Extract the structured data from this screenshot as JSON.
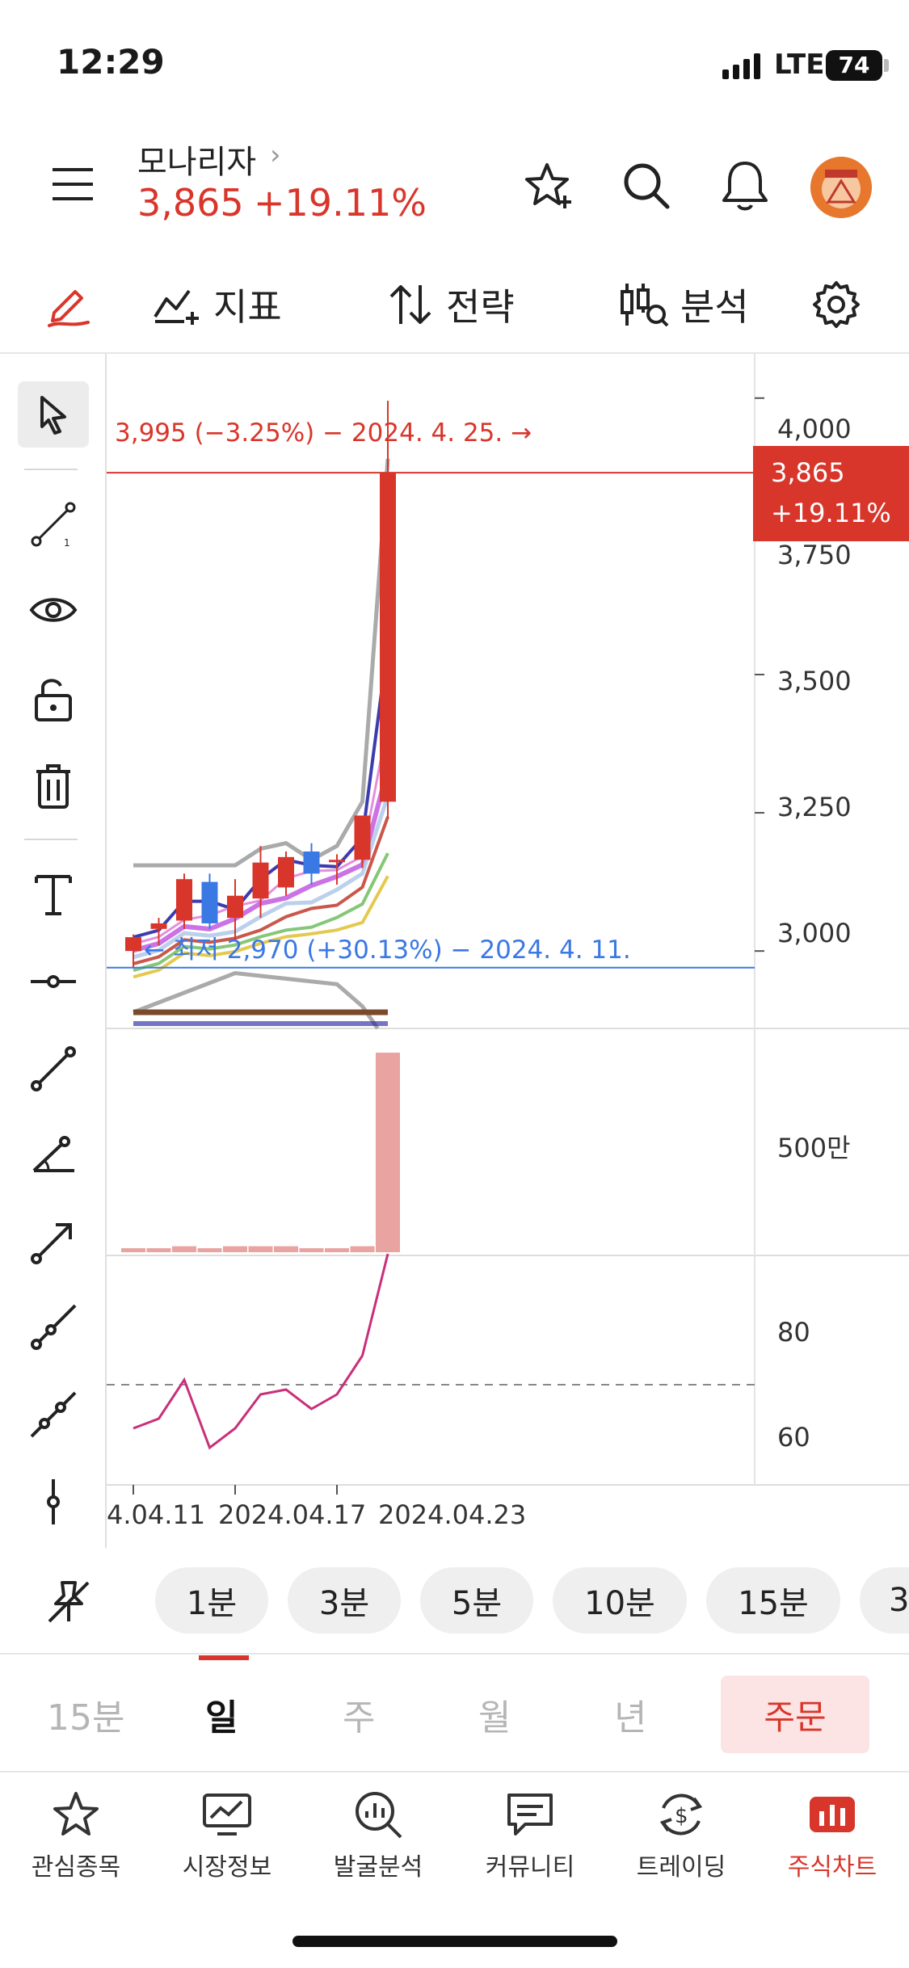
{
  "status_bar": {
    "time": "12:29",
    "network": "LTE",
    "battery": "74"
  },
  "header": {
    "stock_name": "모나리자",
    "chevron": "›",
    "price": "3,865",
    "change_pct": "+19.11%",
    "icons": [
      "menu-icon",
      "star-plus-icon",
      "search-icon",
      "bell-icon",
      "avatar"
    ]
  },
  "toolbar": {
    "indicator_label": "지표",
    "strategy_label": "전략",
    "analysis_label": "분석"
  },
  "chart": {
    "high_annotation": "3,995 (−3.25%) − 2024. 4. 25. →",
    "low_annotation": "← 최저 2,970 (+30.13%) − 2024. 4. 11.",
    "price_tag_price": "3,865",
    "price_tag_change": "+19.11%",
    "y_labels_price": [
      "4,000",
      "3,750",
      "3,500",
      "3,250",
      "3,000"
    ],
    "y_label_volume": "500만",
    "y_labels_rsi": [
      "80",
      "60"
    ],
    "x_labels": [
      "4.04.11",
      "2024.04.17",
      "2024.04.23"
    ],
    "colors": {
      "up": "#d9362b",
      "down": "#3a78e4",
      "volume": "#e9a3a0",
      "rsi": "#c8307a"
    }
  },
  "chart_data": {
    "type": "candlestick",
    "dates": [
      "2024.04.11",
      "2024.04.12",
      "2024.04.15",
      "2024.04.16",
      "2024.04.17",
      "2024.04.18",
      "2024.04.19",
      "2024.04.22",
      "2024.04.23",
      "2024.04.24",
      "2024.04.25"
    ],
    "candles": [
      {
        "o": 3000,
        "h": 3030,
        "l": 2970,
        "c": 3025
      },
      {
        "o": 3040,
        "h": 3060,
        "l": 3010,
        "c": 3050
      },
      {
        "o": 3055,
        "h": 3140,
        "l": 3040,
        "c": 3130
      },
      {
        "o": 3125,
        "h": 3140,
        "l": 3040,
        "c": 3050
      },
      {
        "o": 3060,
        "h": 3130,
        "l": 3020,
        "c": 3100
      },
      {
        "o": 3095,
        "h": 3190,
        "l": 3060,
        "c": 3160
      },
      {
        "o": 3115,
        "h": 3180,
        "l": 3100,
        "c": 3170
      },
      {
        "o": 3180,
        "h": 3195,
        "l": 3120,
        "c": 3140
      },
      {
        "o": 3165,
        "h": 3175,
        "l": 3120,
        "c": 3165
      },
      {
        "o": 3165,
        "h": 3245,
        "l": 3150,
        "c": 3245
      },
      {
        "o": 3270,
        "h": 3995,
        "l": 3240,
        "c": 3865
      }
    ],
    "volume_relative": [
      0.02,
      0.02,
      0.03,
      0.02,
      0.03,
      0.03,
      0.03,
      0.02,
      0.02,
      0.03,
      1.0
    ],
    "rsi": [
      61,
      63,
      71,
      57,
      61,
      68,
      69,
      65,
      68,
      76,
      97
    ],
    "rsi_reference": 70,
    "y_range_price": [
      2860,
      4080
    ],
    "y_range_rsi": [
      50,
      96
    ]
  },
  "timeframes": [
    "1분",
    "3분",
    "5분",
    "10분",
    "15분",
    "3"
  ],
  "periods": [
    "15분",
    "일",
    "주",
    "월",
    "년"
  ],
  "active_period": "일",
  "order_label": "주문",
  "bottom_nav": [
    {
      "label": "관심종목",
      "icon": "star-icon"
    },
    {
      "label": "시장정보",
      "icon": "monitor-chart-icon"
    },
    {
      "label": "발굴분석",
      "icon": "magnify-chart-icon"
    },
    {
      "label": "커뮤니티",
      "icon": "chat-icon"
    },
    {
      "label": "트레이딩",
      "icon": "dollar-cycle-icon"
    },
    {
      "label": "주식차트",
      "icon": "bar-chart-icon"
    }
  ]
}
